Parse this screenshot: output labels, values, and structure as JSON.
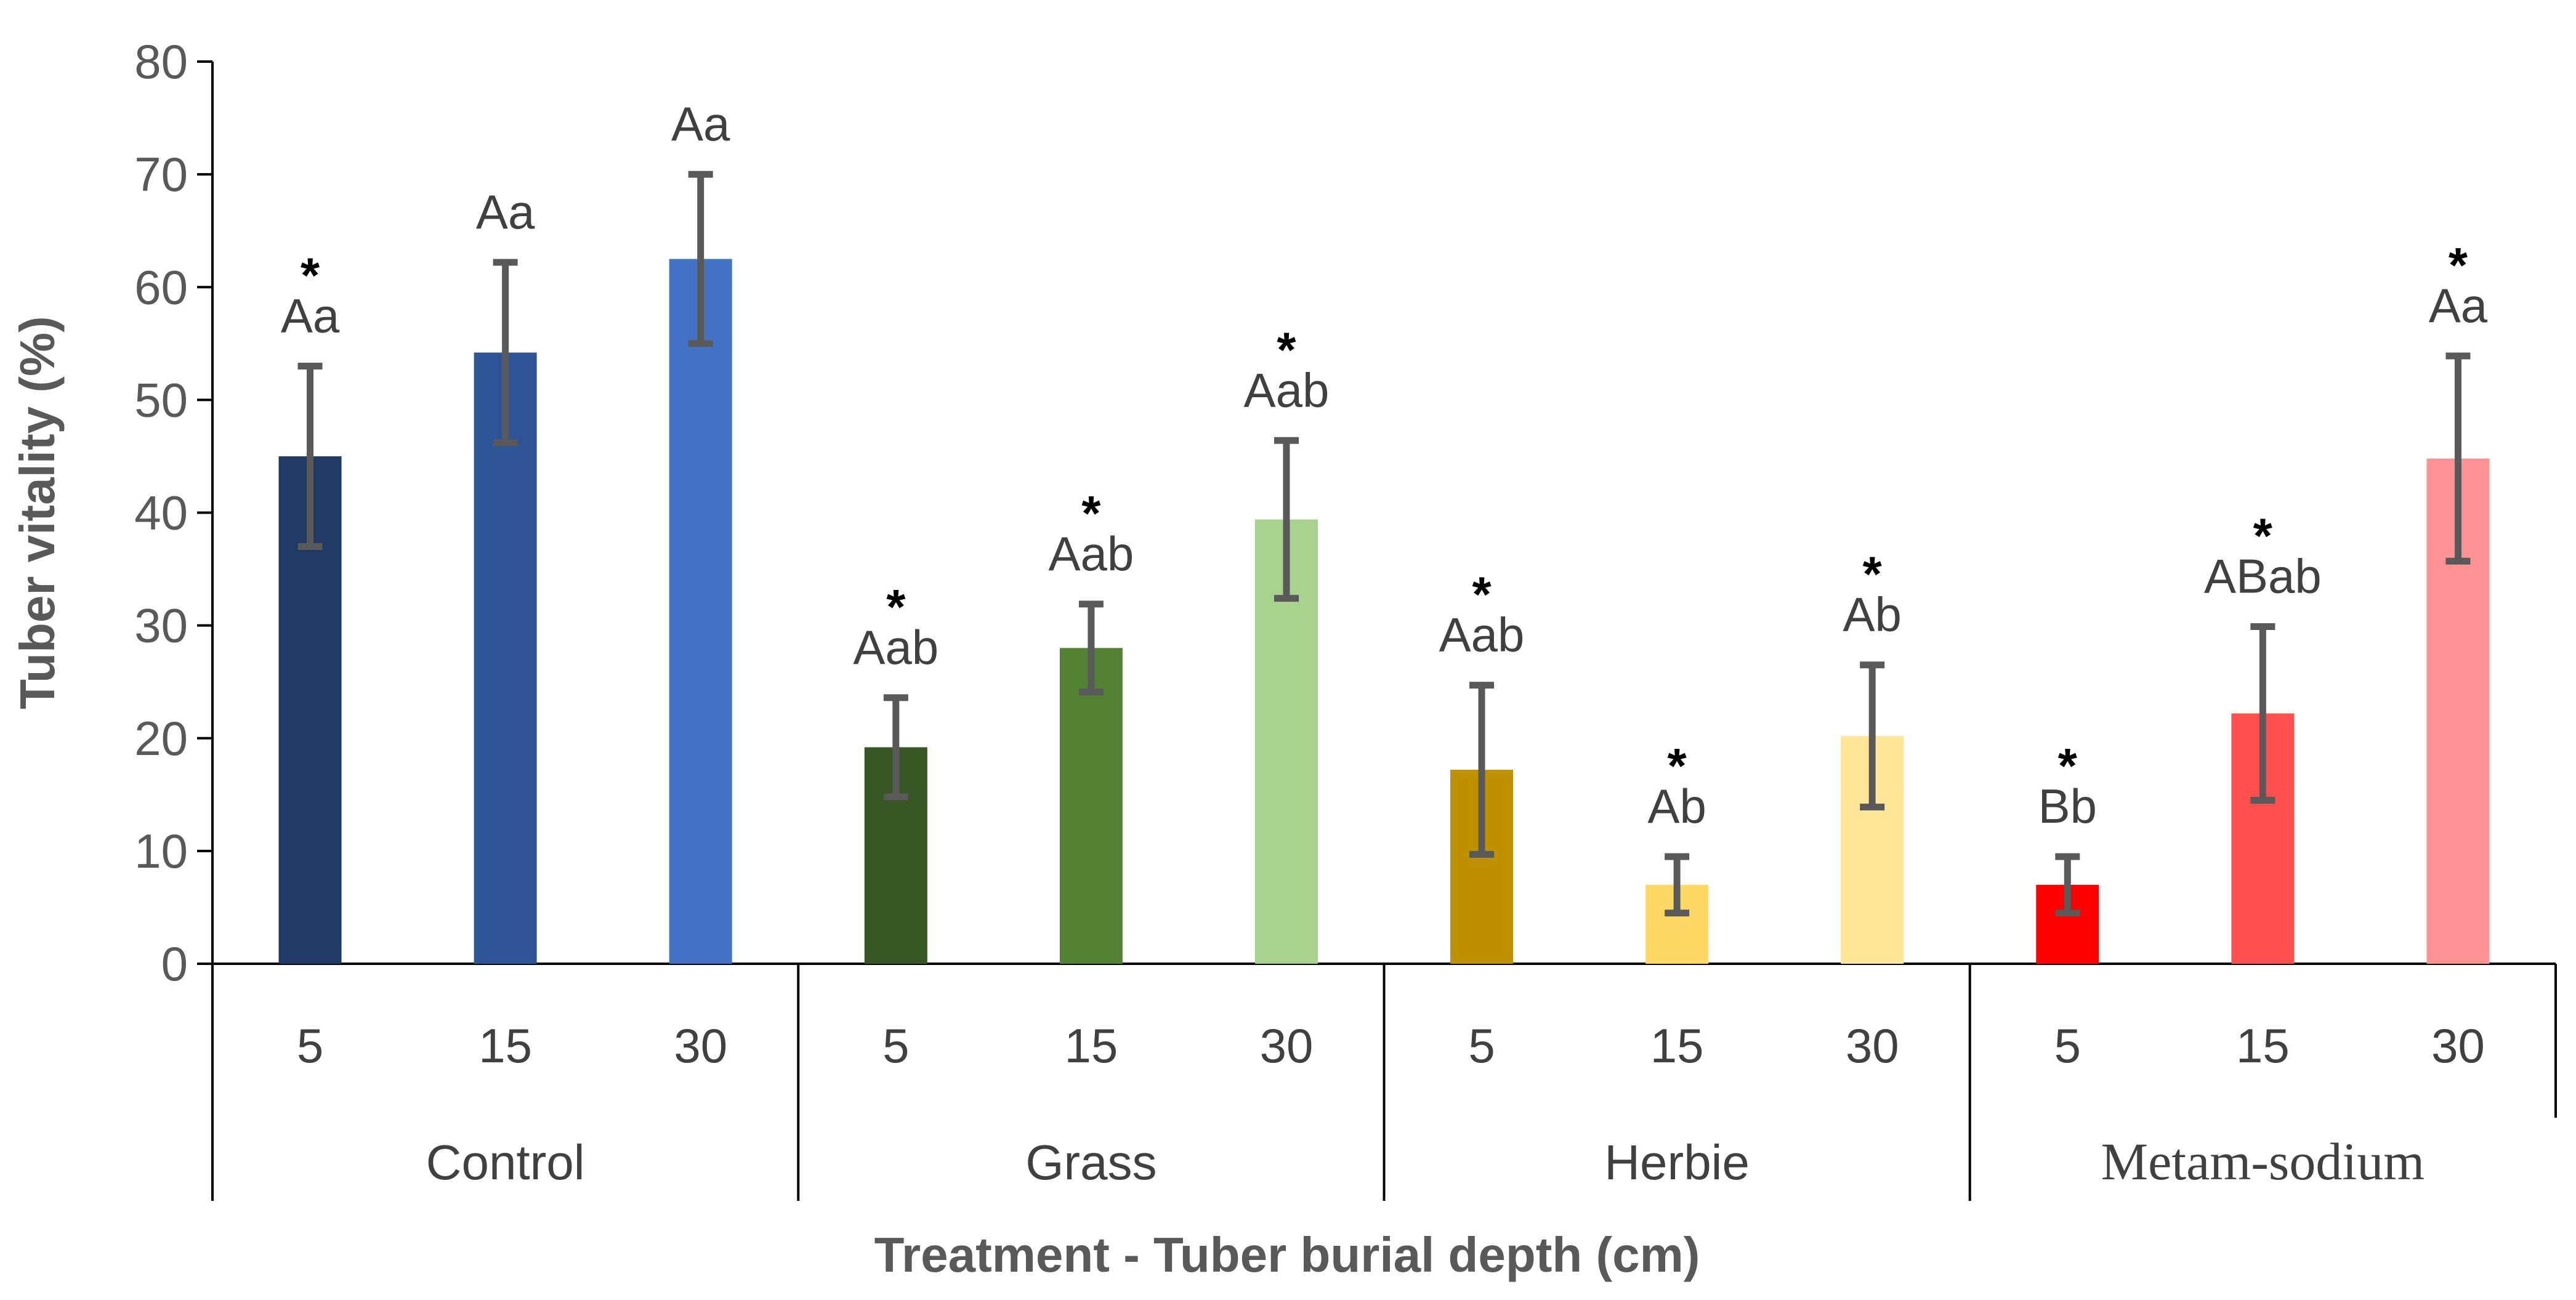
{
  "chart_data": {
    "type": "bar",
    "title": "",
    "xlabel": "Treatment - Tuber burial depth (cm)",
    "ylabel": "Tuber vitality (%)",
    "ylim": [
      0,
      80
    ],
    "yticks": [
      0,
      10,
      20,
      30,
      40,
      50,
      60,
      70,
      80
    ],
    "grid": false,
    "legend": "none",
    "groups": [
      {
        "name": "Control",
        "bars": [
          {
            "depth": "5",
            "value": 45.0,
            "error": 8.0,
            "letters": "Aa",
            "star": "*",
            "color": "#203864"
          },
          {
            "depth": "15",
            "value": 54.2,
            "error": 8.0,
            "letters": "Aa",
            "star": "",
            "color": "#2F5597"
          },
          {
            "depth": "30",
            "value": 62.5,
            "error": 7.5,
            "letters": "Aa",
            "star": "",
            "color": "#4472C4"
          }
        ]
      },
      {
        "name": "Grass",
        "bars": [
          {
            "depth": "5",
            "value": 19.2,
            "error": 4.4,
            "letters": "Aab",
            "star": "*",
            "color": "#375623"
          },
          {
            "depth": "15",
            "value": 28.0,
            "error": 3.9,
            "letters": "Aab",
            "star": "*",
            "color": "#548235"
          },
          {
            "depth": "30",
            "value": 39.4,
            "error": 7.0,
            "letters": "Aab",
            "star": "*",
            "color": "#A9D18E"
          }
        ]
      },
      {
        "name": "Herbie",
        "bars": [
          {
            "depth": "5",
            "value": 17.2,
            "error": 7.5,
            "letters": "Aab",
            "star": "*",
            "color": "#BF9000"
          },
          {
            "depth": "15",
            "value": 7.0,
            "error": 2.5,
            "letters": "Ab",
            "star": "*",
            "color": "#FFD966"
          },
          {
            "depth": "30",
            "value": 20.2,
            "error": 6.3,
            "letters": "Ab",
            "star": "*",
            "color": "#FFE699"
          }
        ]
      },
      {
        "name": "Metam-sodium",
        "bars": [
          {
            "depth": "5",
            "value": 7.0,
            "error": 2.5,
            "letters": "Bb",
            "star": "*",
            "color": "#FF0000"
          },
          {
            "depth": "15",
            "value": 22.2,
            "error": 7.7,
            "letters": "ABab",
            "star": "*",
            "color": "#FF5050"
          },
          {
            "depth": "30",
            "value": 44.8,
            "error": 9.1,
            "letters": "Aa",
            "star": "*",
            "color": "#FF9393"
          }
        ]
      }
    ]
  }
}
